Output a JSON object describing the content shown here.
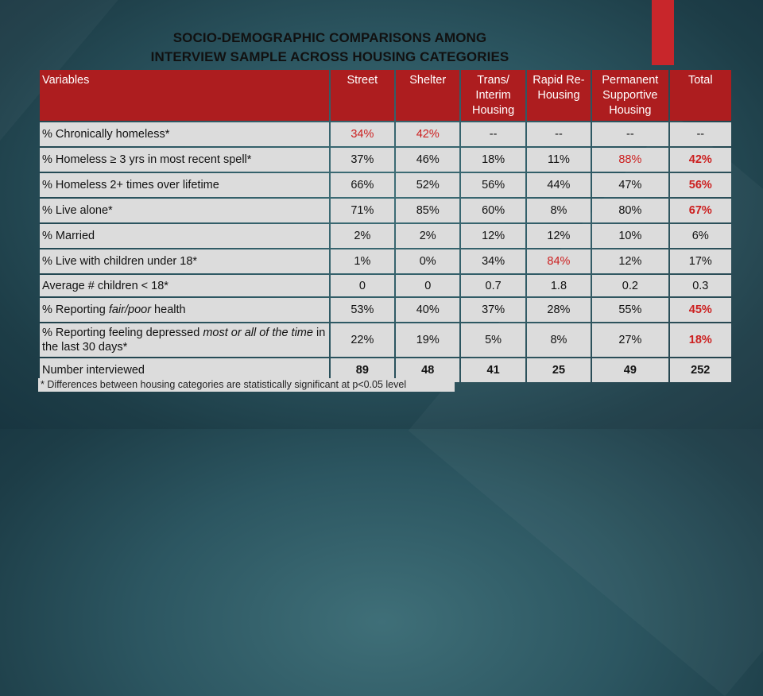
{
  "title": {
    "line1": "SOCIO-DEMOGRAPHIC COMPARISONS AMONG",
    "line2": "INTERVIEW SAMPLE ACROSS HOUSING CATEGORIES"
  },
  "columns": {
    "variables": "Variables",
    "street": "Street",
    "shelter": "Shelter",
    "trans_l1": "Trans/",
    "trans_l2": "Interim",
    "trans_l3": "Housing",
    "rapid_l1": "Rapid Re-",
    "rapid_l2": "Housing",
    "perm_l1": "Permanent",
    "perm_l2": "Supportive",
    "perm_l3": "Housing",
    "total": "Total"
  },
  "rows": [
    {
      "label": "% Chronically homeless*",
      "street": "34%",
      "shelter": "42%",
      "trans": "--",
      "rapid": "--",
      "perm": "--",
      "total": "--"
    },
    {
      "label": "% Homeless ≥ 3 yrs in most recent spell*",
      "street": "37%",
      "shelter": "46%",
      "trans": "18%",
      "rapid": "11%",
      "perm": "88%",
      "total": "42%"
    },
    {
      "label": "% Homeless 2+ times over lifetime",
      "street": "66%",
      "shelter": "52%",
      "trans": "56%",
      "rapid": "44%",
      "perm": "47%",
      "total": "56%"
    },
    {
      "label": "% Live alone*",
      "street": "71%",
      "shelter": "85%",
      "trans": "60%",
      "rapid": "8%",
      "perm": "80%",
      "total": "67%"
    },
    {
      "label": "% Married",
      "street": "2%",
      "shelter": "2%",
      "trans": "12%",
      "rapid": "12%",
      "perm": "10%",
      "total": "6%"
    },
    {
      "label": "% Live with children under 18*",
      "street": "1%",
      "shelter": "0%",
      "trans": "34%",
      "rapid": "84%",
      "perm": "12%",
      "total": "17%"
    },
    {
      "label": "Average # children < 18*",
      "street": "0",
      "shelter": "0",
      "trans": "0.7",
      "rapid": "1.8",
      "perm": "0.2",
      "total": "0.3"
    },
    {
      "label_pre": "% Reporting ",
      "label_em": "fair/poor",
      "label_post": " health",
      "street": "53%",
      "shelter": "40%",
      "trans": "37%",
      "rapid": "28%",
      "perm": "55%",
      "total": "45%"
    },
    {
      "label_pre": "% Reporting feeling depressed ",
      "label_em": "most or all of the time",
      "label_post": " in the last 30 days*",
      "street": "22%",
      "shelter": "19%",
      "trans": "5%",
      "rapid": "8%",
      "perm": "27%",
      "total": "18%"
    },
    {
      "label": "Number interviewed",
      "street": "89",
      "shelter": "48",
      "trans": "41",
      "rapid": "25",
      "perm": "49",
      "total": "252"
    }
  ],
  "footnote": "* Differences between housing categories are statistically significant at p<0.05 level",
  "colors": {
    "header_red": "#ad1d1f",
    "highlight_red": "#cc1f1f",
    "cell_gray": "#dcdcdc",
    "accent": "#c8262b"
  }
}
